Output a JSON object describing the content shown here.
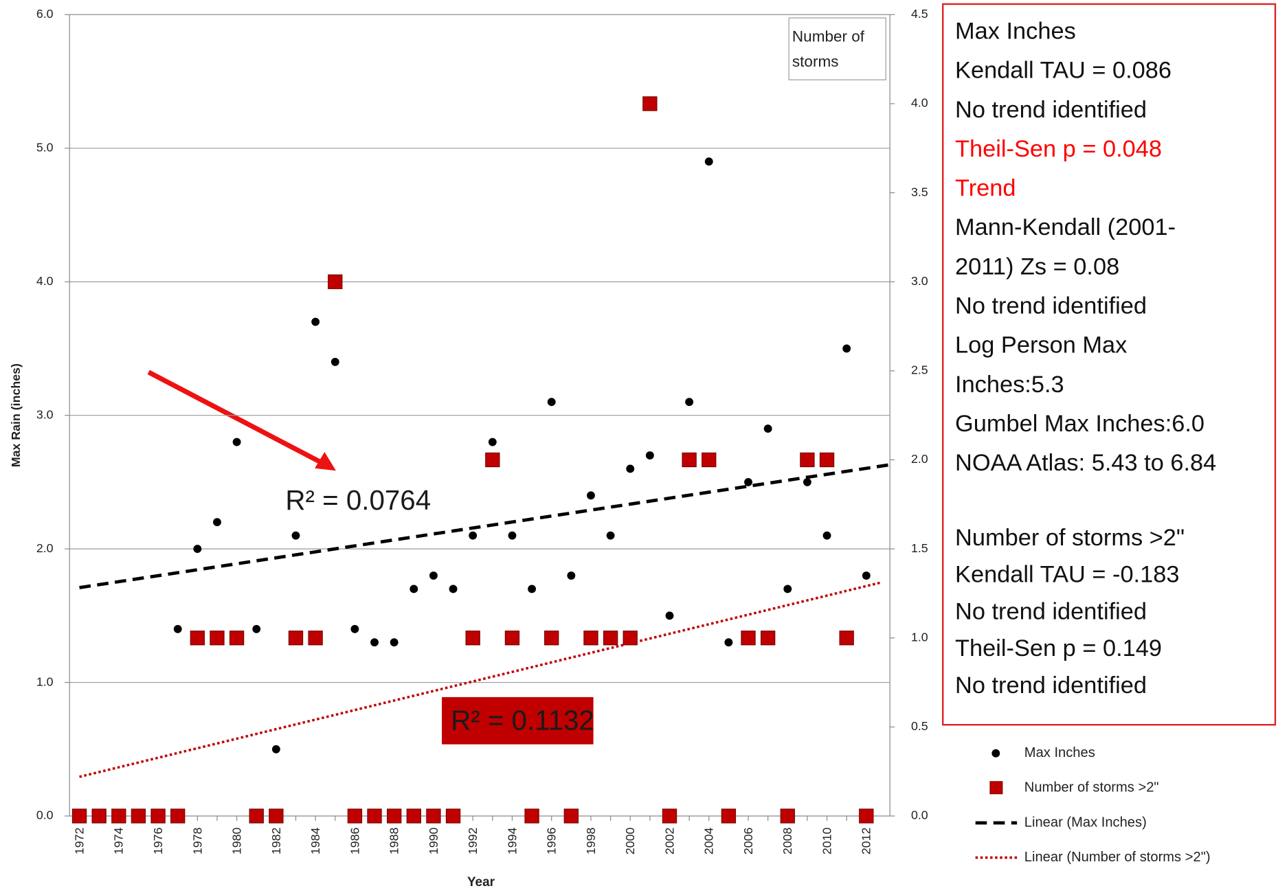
{
  "chart_data": {
    "type": "scatter",
    "xlabel": "Year",
    "ylabel": "Max Rain (inches)",
    "y2label": "Number of storms",
    "xlim": [
      1971.5,
      2013.2
    ],
    "xticks": [
      1972,
      1974,
      1976,
      1978,
      1980,
      1982,
      1984,
      1986,
      1988,
      1990,
      1992,
      1994,
      1996,
      1998,
      2000,
      2002,
      2004,
      2006,
      2008,
      2010,
      2012
    ],
    "ylim": [
      0,
      6
    ],
    "yticks": [
      {
        "value": 0,
        "label": "0.0"
      },
      {
        "value": 1,
        "label": "1.0"
      },
      {
        "value": 2,
        "label": "2.0"
      },
      {
        "value": 3,
        "label": "3.0"
      },
      {
        "value": 4,
        "label": "4.0"
      },
      {
        "value": 5,
        "label": "5.0"
      },
      {
        "value": 6,
        "label": "6.0"
      }
    ],
    "y2lim": [
      0,
      4.5
    ],
    "y2ticks": [
      {
        "value": 0,
        "label": "0.0"
      },
      0.5,
      {
        "value": 1,
        "label": "1.0"
      },
      1.5,
      {
        "value": 2,
        "label": "2.0"
      },
      2.5,
      {
        "value": 3,
        "label": "3.0"
      },
      3.5,
      {
        "value": 4,
        "label": "4.0"
      },
      4.5
    ],
    "grid": true,
    "x": [
      1972,
      1973,
      1974,
      1975,
      1976,
      1977,
      1978,
      1979,
      1980,
      1981,
      1982,
      1983,
      1984,
      1985,
      1986,
      1987,
      1988,
      1989,
      1990,
      1991,
      1992,
      1993,
      1994,
      1995,
      1996,
      1997,
      1998,
      1999,
      2000,
      2001,
      2002,
      2003,
      2004,
      2005,
      2006,
      2007,
      2008,
      2009,
      2010,
      2011,
      2012
    ],
    "series": [
      {
        "name": "Max Inches",
        "color": "#000000",
        "marker": "circle",
        "values": [
          null,
          null,
          null,
          null,
          null,
          1.4,
          2.0,
          2.2,
          2.8,
          1.4,
          0.5,
          2.1,
          3.7,
          3.4,
          1.4,
          1.3,
          1.3,
          1.7,
          1.8,
          1.7,
          2.1,
          2.8,
          2.1,
          1.7,
          3.1,
          1.8,
          2.4,
          2.1,
          2.6,
          2.7,
          1.5,
          3.1,
          4.9,
          1.3,
          2.5,
          2.9,
          1.7,
          2.5,
          2.1,
          3.5,
          1.8
        ]
      },
      {
        "name": "Number of storms >2\"",
        "color": "#c00000",
        "marker": "square",
        "axis": "y2",
        "values": [
          0,
          0,
          0,
          0,
          0,
          0,
          1,
          1,
          1,
          0,
          0,
          1,
          1,
          3,
          0,
          0,
          0,
          0,
          0,
          0,
          1,
          2,
          1,
          0,
          1,
          0,
          1,
          1,
          1,
          4,
          0,
          2,
          2,
          0,
          1,
          1,
          0,
          2,
          2,
          1,
          0
        ]
      },
      {
        "name": "Linear (Max Inches)",
        "color": "#000000",
        "style": "dashed",
        "x": [
          1972,
          2013.2
        ],
        "values": [
          1.71,
          2.63
        ]
      },
      {
        "name": "Linear (Number of storms >2\")",
        "color": "#c00000",
        "style": "dotted",
        "axis": "y2",
        "x": [
          1972,
          2012.7
        ],
        "values": [
          0.22,
          1.31
        ]
      }
    ],
    "annotations": [
      {
        "text": "R² = 0.0764"
      },
      {
        "text": "R² = 0.1132",
        "color": "#c00000"
      }
    ],
    "text_box": {
      "groups": [
        [
          {
            "text": "Max Inches"
          },
          {
            "text": "Kendall TAU = 0.086"
          },
          {
            "text": "No trend identified"
          },
          {
            "text": "Theil-Sen p = 0.048",
            "color": "#ff0000"
          },
          {
            "text": "Trend",
            "color": "#ff0000"
          },
          {
            "text": "Mann-Kendall (2001-"
          },
          {
            "text": "2011) Zs = 0.08"
          },
          {
            "text": "No trend identified"
          },
          {
            "text": "Log Person Max"
          },
          {
            "text": "Inches:5.3"
          },
          {
            "text": "Gumbel Max Inches:6.0"
          },
          {
            "text": "NOAA Atlas: 5.43 to 6.84"
          }
        ],
        [
          {
            "text": "Number of storms >2\""
          },
          {
            "text": "Kendall TAU = -0.183"
          },
          {
            "text": "No trend identified"
          },
          {
            "text": "Theil-Sen p = 0.149"
          },
          {
            "text": "No trend identified"
          }
        ]
      ]
    }
  }
}
